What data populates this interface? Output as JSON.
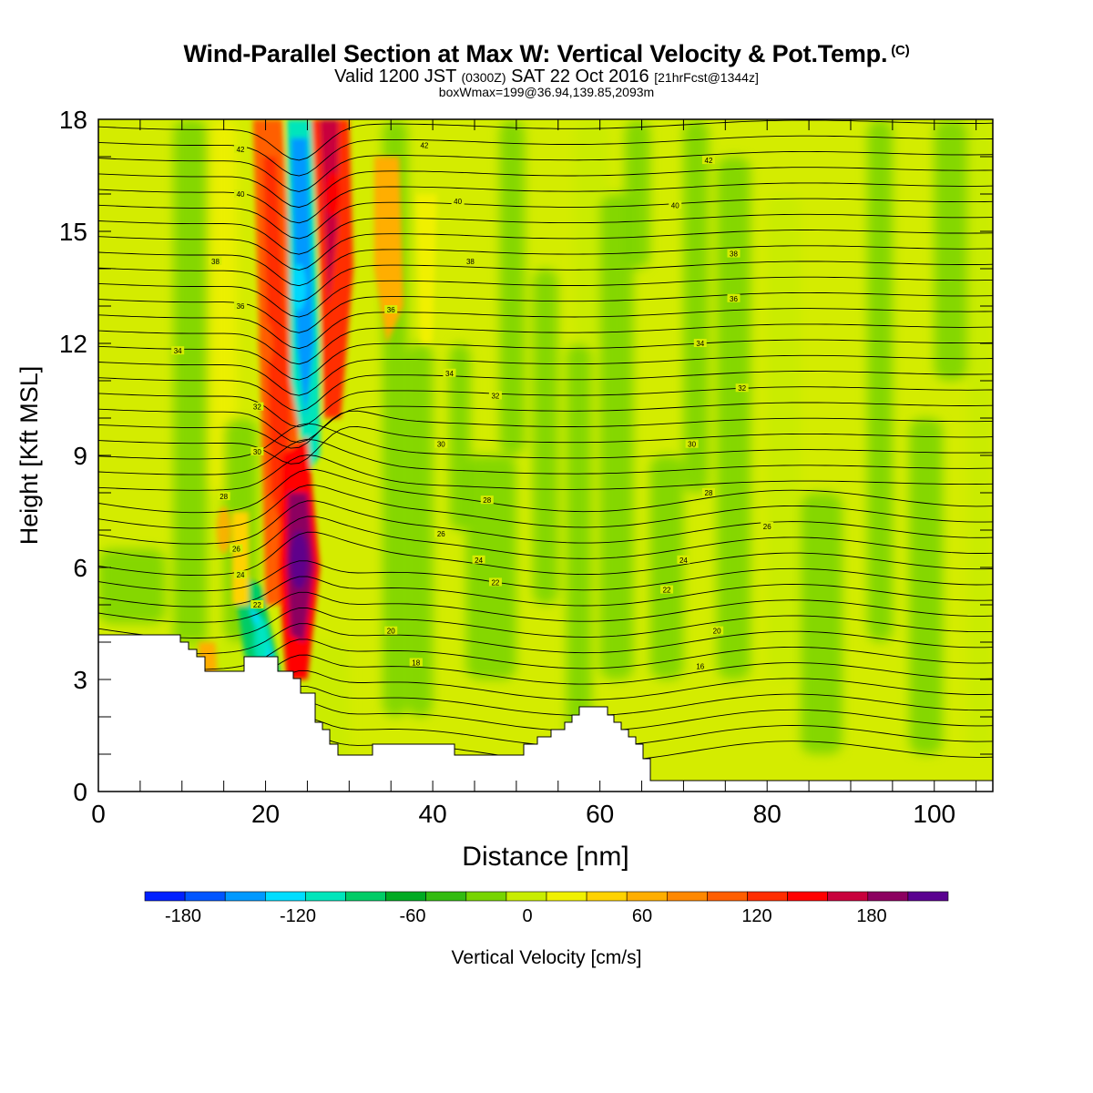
{
  "chart_data": {
    "type": "heatmap",
    "title": "Wind-Parallel Section at Max W: Vertical Velocity & Pot.Temp.",
    "title_mark": "(C)",
    "subtitle_parts": [
      "Valid 1200 JST",
      "(0300Z)",
      "SAT 22 Oct 2016",
      "[21hrFcst@1344z]"
    ],
    "subtitle2": "boxWmax=199@36.94,139.85,2093m",
    "xlabel": "Distance [nm]",
    "ylabel": "Height [Kft MSL]",
    "xlim": [
      0,
      107
    ],
    "ylim": [
      0,
      18
    ],
    "x_ticks": [
      "0",
      "20",
      "40",
      "60",
      "80",
      "100"
    ],
    "y_ticks": [
      "0",
      "3",
      "6",
      "9",
      "12",
      "15",
      "18"
    ],
    "colorbar": {
      "label": "Vertical Velocity [cm/s]",
      "ticks": [
        "-180",
        "-120",
        "-60",
        "0",
        "60",
        "120",
        "180"
      ],
      "levels": [
        -200,
        -180,
        -160,
        -140,
        -120,
        -100,
        -80,
        -60,
        -40,
        -20,
        0,
        20,
        40,
        60,
        80,
        100,
        120,
        140,
        160,
        180,
        200,
        220
      ],
      "colors": [
        "#0020ff",
        "#0055ff",
        "#0099ff",
        "#00ddff",
        "#00e5bb",
        "#00cc66",
        "#00aa22",
        "#33bb11",
        "#77d400",
        "#c8ec00",
        "#f0f000",
        "#ffd200",
        "#ffae00",
        "#ff8800",
        "#ff5e00",
        "#ff2d00",
        "#ff0000",
        "#c8003c",
        "#8c0060",
        "#5a0090"
      ]
    },
    "theta_contour_labels": [
      "16",
      "18",
      "20",
      "22",
      "24",
      "26",
      "28",
      "30",
      "32",
      "34",
      "36",
      "38",
      "40",
      "42"
    ],
    "w_features": [
      {
        "x": 24,
        "y": 6.2,
        "w": 199
      },
      {
        "x": 24,
        "y": 13.5,
        "w": -130
      },
      {
        "x": 28,
        "y": 16,
        "w": 130
      },
      {
        "x": 20,
        "y": 12,
        "w": 80
      },
      {
        "x": 19.5,
        "y": 4,
        "w": -110
      },
      {
        "x": 35,
        "y": 13,
        "w": 50
      },
      {
        "x": 15,
        "y": 7,
        "w": 40
      }
    ]
  }
}
